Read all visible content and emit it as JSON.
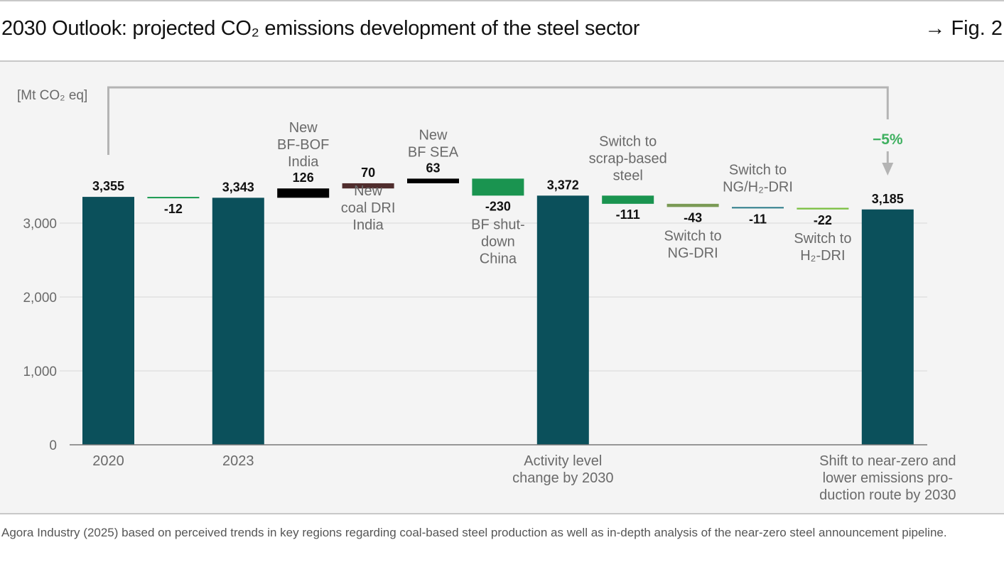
{
  "header": {
    "title": "2030 Outlook: projected CO₂ emissions development of the steel sector",
    "fig_ref": "→ Fig. 2"
  },
  "source": "Agora Industry (2025) based on perceived trends in key regions regarding coal-based steel production as well as in-depth analysis of the near-zero steel announcement pipeline.",
  "chart_data": {
    "type": "bar",
    "subtype": "waterfall",
    "title": "2030 Outlook: projected CO₂ emissions development of the steel sector",
    "ylabel": "[Mt CO₂ eq]",
    "xlabel": "",
    "ylim": [
      0,
      3500
    ],
    "yticks": [
      0,
      1000,
      2000,
      3000
    ],
    "ytick_labels": [
      "0",
      "1,000",
      "2,000",
      "3,000"
    ],
    "grid": true,
    "annotation": {
      "text": "−5%",
      "from": "2020",
      "to": "2030 final",
      "color": "#3fb060"
    },
    "steps": [
      {
        "key": "y2020",
        "kind": "total",
        "value": 3355,
        "label": "3,355",
        "category_label": [
          "2020"
        ],
        "label_pos": "below-axis",
        "color": "#0b505b"
      },
      {
        "key": "d1",
        "kind": "delta",
        "value": -12,
        "label": "-12",
        "category_label": [],
        "color": "#1a9a50"
      },
      {
        "key": "y2023",
        "kind": "total",
        "value": 3343,
        "label": "3,343",
        "category_label": [
          "2023"
        ],
        "label_pos": "below-axis",
        "color": "#0b505b"
      },
      {
        "key": "bfbof",
        "kind": "delta",
        "value": 126,
        "label": "126",
        "category_label": [
          "New",
          "BF-BOF",
          "India"
        ],
        "label_pos": "above",
        "color": "#000000"
      },
      {
        "key": "coaldri",
        "kind": "delta",
        "value": 70,
        "label": "70",
        "category_label": [
          "New",
          "coal DRI",
          "India"
        ],
        "label_pos": "below",
        "color": "#4f2d2d"
      },
      {
        "key": "bfsea",
        "kind": "delta",
        "value": 63,
        "label": "63",
        "category_label": [
          "New",
          "BF SEA"
        ],
        "label_pos": "above",
        "color": "#000000"
      },
      {
        "key": "bfchina",
        "kind": "delta",
        "value": -230,
        "label": "-230",
        "category_label": [
          "BF shut-",
          "down",
          "China"
        ],
        "label_pos": "below",
        "color": "#1a9450"
      },
      {
        "key": "activity",
        "kind": "total",
        "value": 3372,
        "label": "3,372",
        "category_label": [
          "Activity level",
          "change by 2030"
        ],
        "label_pos": "below-axis",
        "color": "#0b505b"
      },
      {
        "key": "scrap",
        "kind": "delta",
        "value": -111,
        "label": "-111",
        "category_label": [
          "Switch to",
          "scrap-based",
          "steel"
        ],
        "label_pos": "above",
        "color": "#1a9450"
      },
      {
        "key": "ngdri",
        "kind": "delta",
        "value": -43,
        "label": "-43",
        "category_label": [
          "Switch to",
          "NG-DRI"
        ],
        "label_pos": "below",
        "color": "#7a9a55"
      },
      {
        "key": "ngh2dri",
        "kind": "delta",
        "value": -11,
        "label": "-11",
        "category_label": [
          "Switch to",
          "NG/H₂-DRI"
        ],
        "label_pos": "above",
        "color": "#2a7a88"
      },
      {
        "key": "h2dri",
        "kind": "delta",
        "value": -22,
        "label": "-22",
        "category_label": [
          "Switch to",
          "H₂-DRI"
        ],
        "label_pos": "below",
        "color": "#7ac040"
      },
      {
        "key": "final",
        "kind": "total",
        "value": 3185,
        "label": "3,185",
        "category_label": [
          "Shift to near-zero and",
          "lower emissions pro-",
          "duction route by 2030"
        ],
        "label_pos": "below-axis",
        "color": "#0b505b"
      }
    ]
  }
}
